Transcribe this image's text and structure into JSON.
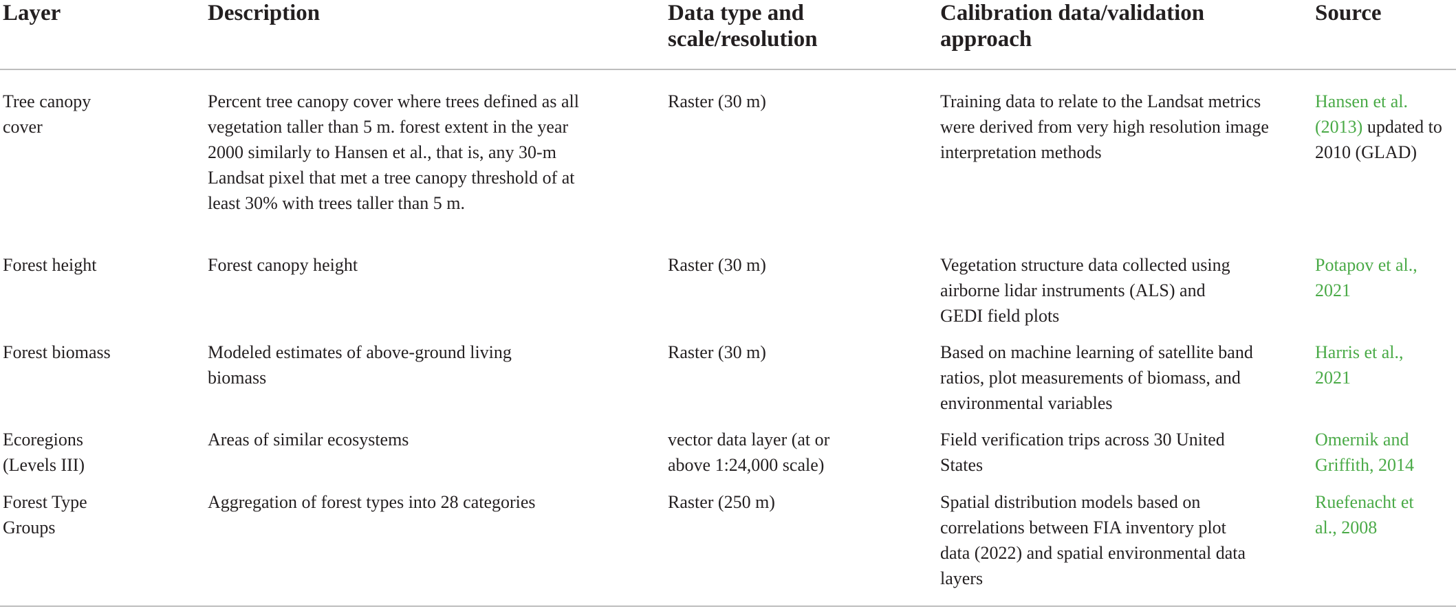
{
  "table": {
    "headers": [
      "Layer",
      "Description",
      "Data type and scale/resolution",
      "Calibration data/validation approach",
      "Source"
    ],
    "rows": [
      {
        "layer": "Tree canopy cover",
        "description": "Percent tree canopy cover where trees defined as all vegetation taller than 5 m. forest extent in the year 2000 similarly to Hansen et al., that is, any 30-m Landsat pixel that met a tree canopy threshold of at least 30% with trees taller than 5 m.",
        "data_type": "Raster (30 m)",
        "calibration": "Training data to relate to the Landsat metrics were derived from very high resolution image interpretation methods",
        "source_link": "Hansen et al. (2013)",
        "source_rest": " updated to 2010 (GLAD)"
      },
      {
        "layer": "Forest height",
        "description": "Forest canopy height",
        "data_type": "Raster (30 m)",
        "calibration": "Vegetation structure data collected using airborne lidar instruments (ALS) and GEDI field plots",
        "source_link": "Potapov et al., 2021",
        "source_rest": ""
      },
      {
        "layer": "Forest biomass",
        "description": "Modeled estimates of above-ground living biomass",
        "data_type": "Raster (30 m)",
        "calibration": "Based on machine learning of satellite band ratios, plot measurements of biomass, and environmental variables",
        "source_link": "Harris et al., 2021",
        "source_rest": ""
      },
      {
        "layer": "Ecoregions (Levels III)",
        "description": "Areas of similar ecosystems",
        "data_type": "vector data layer (at or above 1:24,000 scale)",
        "calibration": "Field verification trips across 30 United States",
        "source_link": "Omernik and Griffith, 2014",
        "source_rest": ""
      },
      {
        "layer": "Forest Type Groups",
        "description": "Aggregation of forest types into 28 categories",
        "data_type": "Raster (250 m)",
        "calibration": "Spatial distribution models based on correlations between FIA inventory plot data (2022) and spatial environmental data layers",
        "source_link": "Ruefenacht et al., 2008",
        "source_rest": ""
      }
    ]
  }
}
